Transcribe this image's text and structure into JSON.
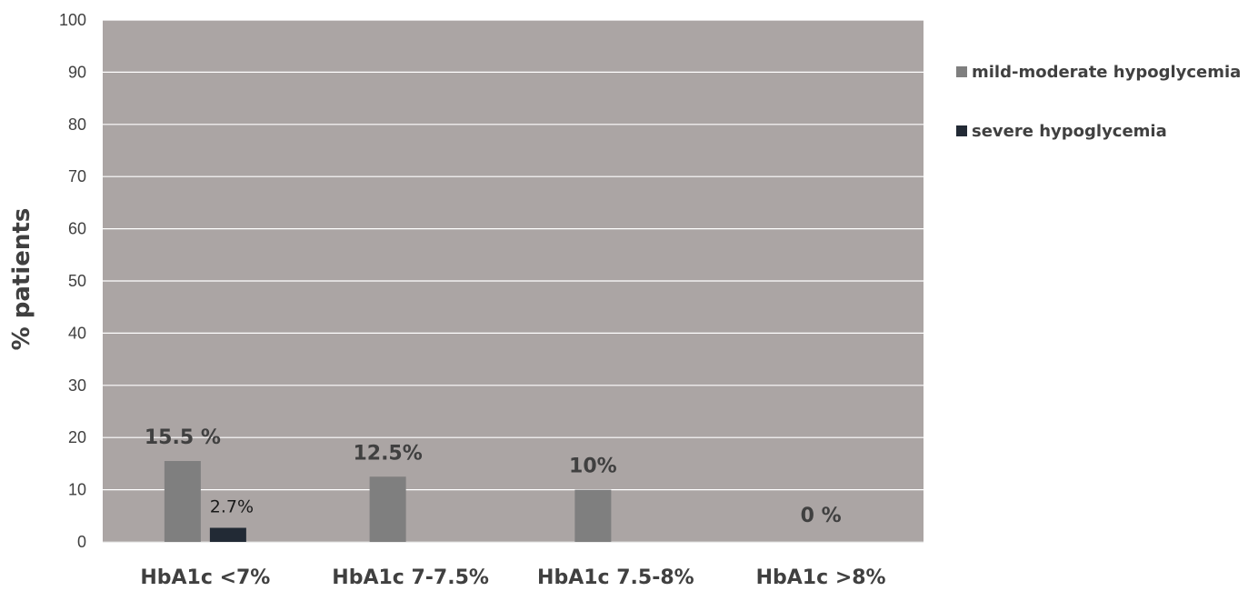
{
  "chart_data": {
    "type": "bar",
    "title": "",
    "xlabel": "",
    "ylabel": "% patients",
    "ylim": [
      0,
      100
    ],
    "yticks": [
      0,
      10,
      20,
      30,
      40,
      50,
      60,
      70,
      80,
      90,
      100
    ],
    "grid": true,
    "legend_position": "right",
    "plot_background": "#aba5a4",
    "categories": [
      "HbA1c <7%",
      "HbA1c 7-7.5%",
      "HbA1c 7.5-8%",
      "HbA1c >8%"
    ],
    "series": [
      {
        "name": "mild-moderate hypoglycemia",
        "color": "#7f7f7f",
        "values": [
          15.5,
          12.5,
          10,
          0
        ],
        "labels": [
          "15.5 %",
          "12.5%",
          "10%",
          "0 %"
        ]
      },
      {
        "name": "severe hypoglycemia",
        "color": "#222a35",
        "values": [
          2.7,
          0,
          0,
          0
        ],
        "labels": [
          "2.7%",
          "",
          "",
          ""
        ]
      }
    ]
  }
}
